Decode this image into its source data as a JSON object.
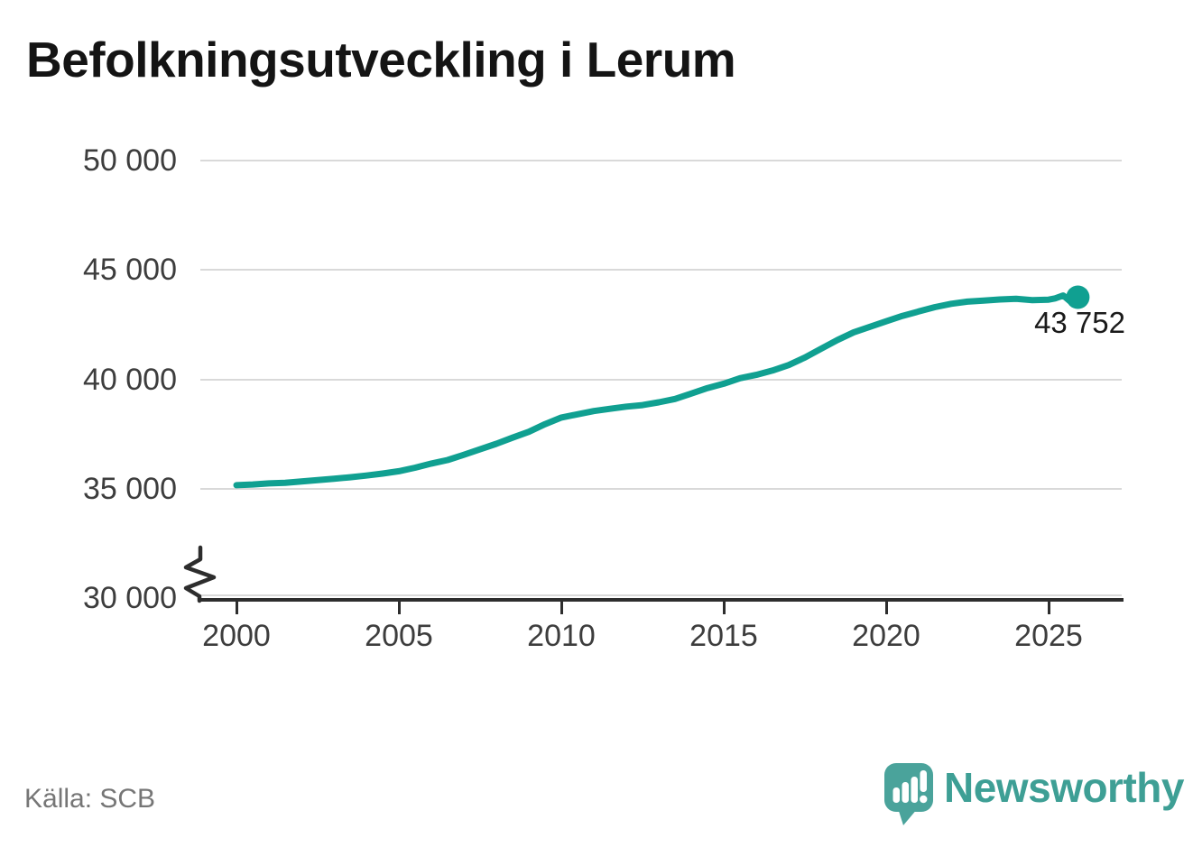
{
  "title": "Befolkningsutveckling i Lerum",
  "source": "Källa: SCB",
  "branding": {
    "wordmark": "Newsworthy",
    "logo_icon": "speech-bubble-bar-chart-exclamation"
  },
  "colors": {
    "line": "#10a091",
    "end_dot": "#10a091",
    "grid": "#d9d9d9",
    "axis": "#2d2d2d",
    "tick_text": "#3d3d3d",
    "title_text": "#141414",
    "source_text": "#767676",
    "brand_teal": "#3e9f95",
    "logo_bubble": "#4aa39b"
  },
  "y_axis": {
    "ticks": [
      "50 000",
      "45 000",
      "40 000",
      "35 000",
      "30 000"
    ],
    "tick_values": [
      50000,
      45000,
      40000,
      35000,
      30000
    ],
    "gridline_values": [
      50000,
      45000,
      40000,
      35000,
      30000
    ],
    "axis_value": 30000,
    "has_break_symbol": true
  },
  "x_axis": {
    "ticks": [
      "2000",
      "2005",
      "2010",
      "2015",
      "2020",
      "2025"
    ],
    "tick_values": [
      2000,
      2005,
      2010,
      2015,
      2020,
      2025
    ]
  },
  "chart_data": {
    "type": "line",
    "title": "Befolkningsutveckling i Lerum",
    "xlabel": "",
    "ylabel": "",
    "xlim": [
      1998.9,
      2027.3
    ],
    "ylim_displayed": [
      30000,
      50000
    ],
    "axis_break_below": 30000,
    "grid": "horizontal",
    "legend": "none",
    "series_color": "#10a091",
    "source": "SCB",
    "x": [
      2000,
      2000.5,
      2001,
      2001.5,
      2002,
      2002.5,
      2003,
      2003.5,
      2004,
      2004.5,
      2005,
      2005.5,
      2006,
      2006.5,
      2007,
      2007.5,
      2008,
      2008.5,
      2009,
      2009.5,
      2010,
      2010.5,
      2011,
      2011.5,
      2012,
      2012.5,
      2013,
      2013.5,
      2014,
      2014.5,
      2015,
      2015.5,
      2016,
      2016.5,
      2017,
      2017.5,
      2018,
      2018.5,
      2019,
      2019.5,
      2020,
      2020.5,
      2021,
      2021.5,
      2022,
      2022.5,
      2023,
      2023.5,
      2024,
      2024.5,
      2025,
      2025.2,
      2025.45,
      2025.65,
      2025.9
    ],
    "y": [
      35160,
      35190,
      35240,
      35270,
      35330,
      35390,
      35450,
      35520,
      35600,
      35690,
      35800,
      35960,
      36150,
      36310,
      36550,
      36800,
      37050,
      37330,
      37600,
      37950,
      38250,
      38400,
      38550,
      38650,
      38750,
      38820,
      38950,
      39100,
      39350,
      39600,
      39800,
      40050,
      40200,
      40400,
      40650,
      41000,
      41400,
      41800,
      42150,
      42400,
      42650,
      42900,
      43100,
      43300,
      43450,
      43550,
      43600,
      43650,
      43680,
      43620,
      43640,
      43700,
      43830,
      43580,
      43752
    ],
    "end_point": {
      "x": 2025.9,
      "y": 43752,
      "label": "43 752"
    }
  }
}
